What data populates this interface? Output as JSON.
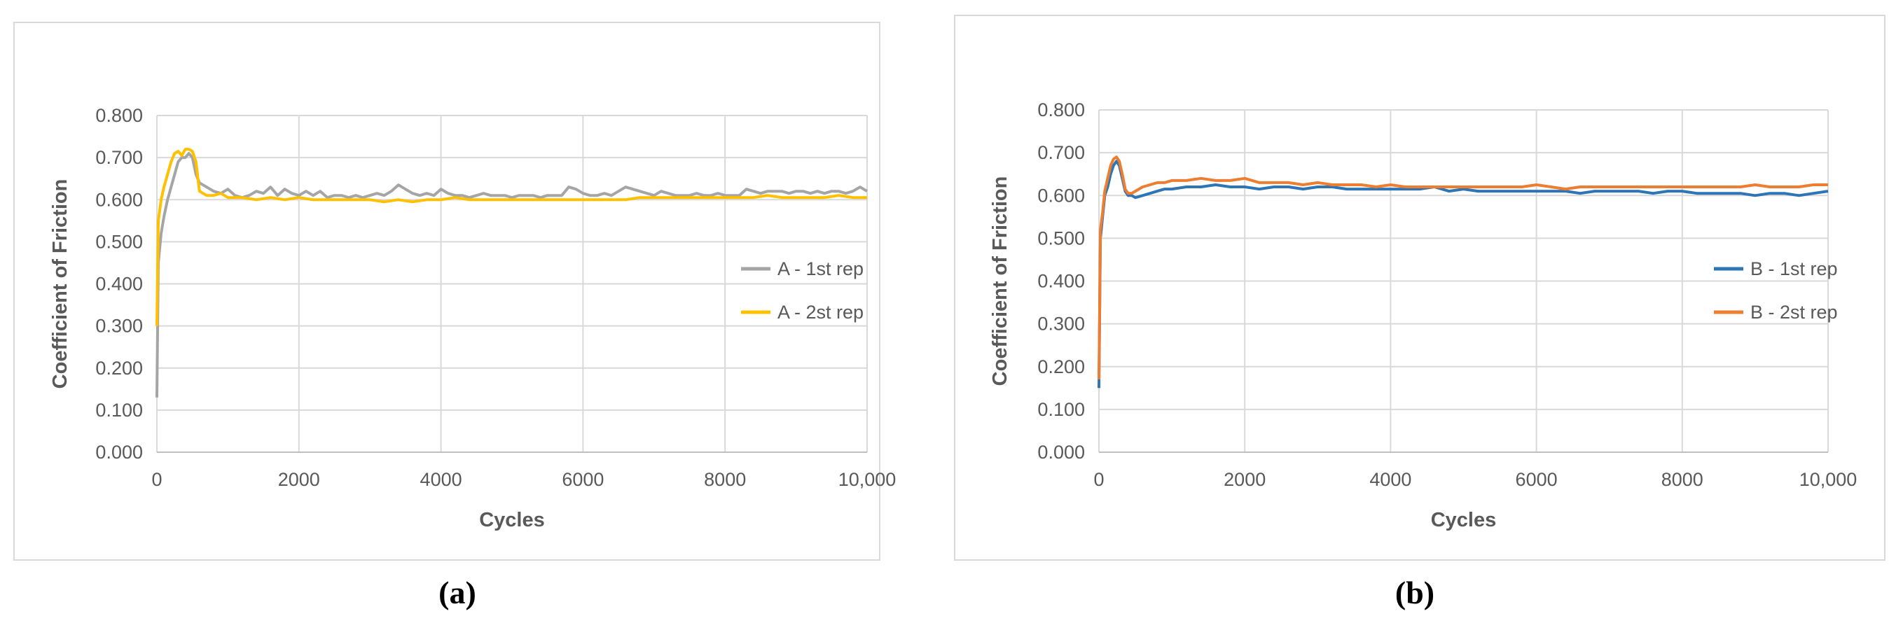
{
  "captions": [
    "(a)",
    "(b)"
  ],
  "chart_data": [
    {
      "type": "line",
      "title": "",
      "xlabel": "Cycles",
      "ylabel": "Coefficient of Friction",
      "xlim": [
        0,
        10000
      ],
      "ylim": [
        0,
        0.8
      ],
      "x_ticks": [
        "0",
        "2000",
        "4000",
        "6000",
        "8000",
        "10,000"
      ],
      "y_ticks": [
        "0.000",
        "0.100",
        "0.200",
        "0.300",
        "0.400",
        "0.500",
        "0.600",
        "0.700",
        "0.800"
      ],
      "grid": true,
      "legend_position": "right",
      "series": [
        {
          "name": "A - 1st rep",
          "color": "#a5a5a5",
          "x": [
            0,
            20,
            60,
            100,
            150,
            200,
            250,
            300,
            350,
            400,
            450,
            500,
            550,
            600,
            700,
            800,
            900,
            1000,
            1100,
            1200,
            1300,
            1400,
            1500,
            1600,
            1700,
            1800,
            1900,
            2000,
            2100,
            2200,
            2300,
            2400,
            2500,
            2600,
            2700,
            2800,
            2900,
            3000,
            3100,
            3200,
            3300,
            3400,
            3500,
            3600,
            3700,
            3800,
            3900,
            4000,
            4100,
            4200,
            4300,
            4400,
            4500,
            4600,
            4700,
            4800,
            4900,
            5000,
            5100,
            5200,
            5300,
            5400,
            5500,
            5600,
            5700,
            5800,
            5900,
            6000,
            6100,
            6200,
            6300,
            6400,
            6500,
            6600,
            6700,
            6800,
            6900,
            7000,
            7100,
            7200,
            7300,
            7400,
            7500,
            7600,
            7700,
            7800,
            7900,
            8000,
            8100,
            8200,
            8300,
            8400,
            8500,
            8600,
            8700,
            8800,
            8900,
            9000,
            9100,
            9200,
            9300,
            9400,
            9500,
            9600,
            9700,
            9800,
            9900,
            10000
          ],
          "y": [
            0.13,
            0.45,
            0.52,
            0.56,
            0.6,
            0.63,
            0.66,
            0.69,
            0.7,
            0.7,
            0.71,
            0.7,
            0.66,
            0.64,
            0.63,
            0.62,
            0.615,
            0.625,
            0.61,
            0.605,
            0.61,
            0.62,
            0.615,
            0.63,
            0.61,
            0.625,
            0.615,
            0.61,
            0.62,
            0.61,
            0.62,
            0.605,
            0.61,
            0.61,
            0.605,
            0.61,
            0.605,
            0.61,
            0.615,
            0.61,
            0.62,
            0.635,
            0.625,
            0.615,
            0.61,
            0.615,
            0.61,
            0.625,
            0.615,
            0.61,
            0.61,
            0.605,
            0.61,
            0.615,
            0.61,
            0.61,
            0.61,
            0.605,
            0.61,
            0.61,
            0.61,
            0.605,
            0.61,
            0.61,
            0.61,
            0.63,
            0.625,
            0.615,
            0.61,
            0.61,
            0.615,
            0.61,
            0.62,
            0.63,
            0.625,
            0.62,
            0.615,
            0.61,
            0.62,
            0.615,
            0.61,
            0.61,
            0.61,
            0.615,
            0.61,
            0.61,
            0.615,
            0.61,
            0.61,
            0.61,
            0.625,
            0.62,
            0.615,
            0.62,
            0.62,
            0.62,
            0.615,
            0.62,
            0.62,
            0.615,
            0.62,
            0.615,
            0.62,
            0.62,
            0.615,
            0.62,
            0.63,
            0.62
          ]
        },
        {
          "name": "A - 2st rep",
          "color": "#ffc000",
          "x": [
            0,
            20,
            60,
            100,
            150,
            200,
            250,
            300,
            350,
            400,
            450,
            500,
            550,
            600,
            700,
            800,
            900,
            1000,
            1200,
            1400,
            1600,
            1800,
            2000,
            2200,
            2400,
            2600,
            2800,
            3000,
            3200,
            3400,
            3600,
            3800,
            4000,
            4200,
            4400,
            4600,
            4800,
            5000,
            5200,
            5400,
            5600,
            5800,
            6000,
            6200,
            6400,
            6600,
            6800,
            7000,
            7200,
            7400,
            7600,
            7800,
            8000,
            8200,
            8400,
            8600,
            8800,
            9000,
            9200,
            9400,
            9600,
            9800,
            10000
          ],
          "y": [
            0.3,
            0.55,
            0.6,
            0.63,
            0.66,
            0.69,
            0.71,
            0.715,
            0.705,
            0.72,
            0.72,
            0.715,
            0.69,
            0.62,
            0.61,
            0.61,
            0.615,
            0.605,
            0.605,
            0.6,
            0.605,
            0.6,
            0.605,
            0.6,
            0.6,
            0.6,
            0.6,
            0.6,
            0.595,
            0.6,
            0.595,
            0.6,
            0.6,
            0.605,
            0.6,
            0.6,
            0.6,
            0.6,
            0.6,
            0.6,
            0.6,
            0.6,
            0.6,
            0.6,
            0.6,
            0.6,
            0.605,
            0.605,
            0.605,
            0.605,
            0.605,
            0.605,
            0.605,
            0.605,
            0.605,
            0.61,
            0.605,
            0.605,
            0.605,
            0.605,
            0.61,
            0.605,
            0.605
          ]
        }
      ]
    },
    {
      "type": "line",
      "title": "",
      "xlabel": "Cycles",
      "ylabel": "Coefficient of Friction",
      "xlim": [
        0,
        10000
      ],
      "ylim": [
        0,
        0.8
      ],
      "x_ticks": [
        "0",
        "2000",
        "4000",
        "6000",
        "8000",
        "10,000"
      ],
      "y_ticks": [
        "0.000",
        "0.100",
        "0.200",
        "0.300",
        "0.400",
        "0.500",
        "0.600",
        "0.700",
        "0.800"
      ],
      "grid": true,
      "legend_position": "right",
      "series": [
        {
          "name": "B - 1st rep",
          "color": "#2e75b6",
          "x": [
            0,
            20,
            50,
            80,
            120,
            160,
            200,
            240,
            280,
            320,
            360,
            400,
            450,
            500,
            600,
            700,
            800,
            900,
            1000,
            1200,
            1400,
            1600,
            1800,
            2000,
            2200,
            2400,
            2600,
            2800,
            3000,
            3200,
            3400,
            3600,
            3800,
            4000,
            4200,
            4400,
            4600,
            4800,
            5000,
            5200,
            5400,
            5600,
            5800,
            6000,
            6200,
            6400,
            6600,
            6800,
            7000,
            7200,
            7400,
            7600,
            7800,
            8000,
            8200,
            8400,
            8600,
            8800,
            9000,
            9200,
            9400,
            9600,
            9800,
            10000
          ],
          "y": [
            0.15,
            0.5,
            0.55,
            0.6,
            0.62,
            0.65,
            0.67,
            0.68,
            0.67,
            0.64,
            0.61,
            0.6,
            0.6,
            0.595,
            0.6,
            0.605,
            0.61,
            0.615,
            0.615,
            0.62,
            0.62,
            0.625,
            0.62,
            0.62,
            0.615,
            0.62,
            0.62,
            0.615,
            0.62,
            0.62,
            0.615,
            0.615,
            0.615,
            0.615,
            0.615,
            0.615,
            0.62,
            0.61,
            0.615,
            0.61,
            0.61,
            0.61,
            0.61,
            0.61,
            0.61,
            0.61,
            0.605,
            0.61,
            0.61,
            0.61,
            0.61,
            0.605,
            0.61,
            0.61,
            0.605,
            0.605,
            0.605,
            0.605,
            0.6,
            0.605,
            0.605,
            0.6,
            0.605,
            0.61
          ]
        },
        {
          "name": "B - 2st rep",
          "color": "#ed7d31",
          "x": [
            0,
            20,
            50,
            80,
            120,
            160,
            200,
            240,
            280,
            320,
            360,
            400,
            450,
            500,
            600,
            700,
            800,
            900,
            1000,
            1200,
            1400,
            1600,
            1800,
            2000,
            2200,
            2400,
            2600,
            2800,
            3000,
            3200,
            3400,
            3600,
            3800,
            4000,
            4200,
            4400,
            4600,
            4800,
            5000,
            5200,
            5400,
            5600,
            5800,
            6000,
            6200,
            6400,
            6600,
            6800,
            7000,
            7200,
            7400,
            7600,
            7800,
            8000,
            8200,
            8400,
            8600,
            8800,
            9000,
            9200,
            9400,
            9600,
            9800,
            10000
          ],
          "y": [
            0.17,
            0.52,
            0.56,
            0.61,
            0.64,
            0.67,
            0.685,
            0.69,
            0.68,
            0.65,
            0.615,
            0.605,
            0.605,
            0.61,
            0.62,
            0.625,
            0.63,
            0.63,
            0.635,
            0.635,
            0.64,
            0.635,
            0.635,
            0.64,
            0.63,
            0.63,
            0.63,
            0.625,
            0.63,
            0.625,
            0.625,
            0.625,
            0.62,
            0.625,
            0.62,
            0.62,
            0.62,
            0.62,
            0.62,
            0.62,
            0.62,
            0.62,
            0.62,
            0.625,
            0.62,
            0.615,
            0.62,
            0.62,
            0.62,
            0.62,
            0.62,
            0.62,
            0.62,
            0.62,
            0.62,
            0.62,
            0.62,
            0.62,
            0.625,
            0.62,
            0.62,
            0.62,
            0.625,
            0.625
          ]
        }
      ]
    }
  ]
}
